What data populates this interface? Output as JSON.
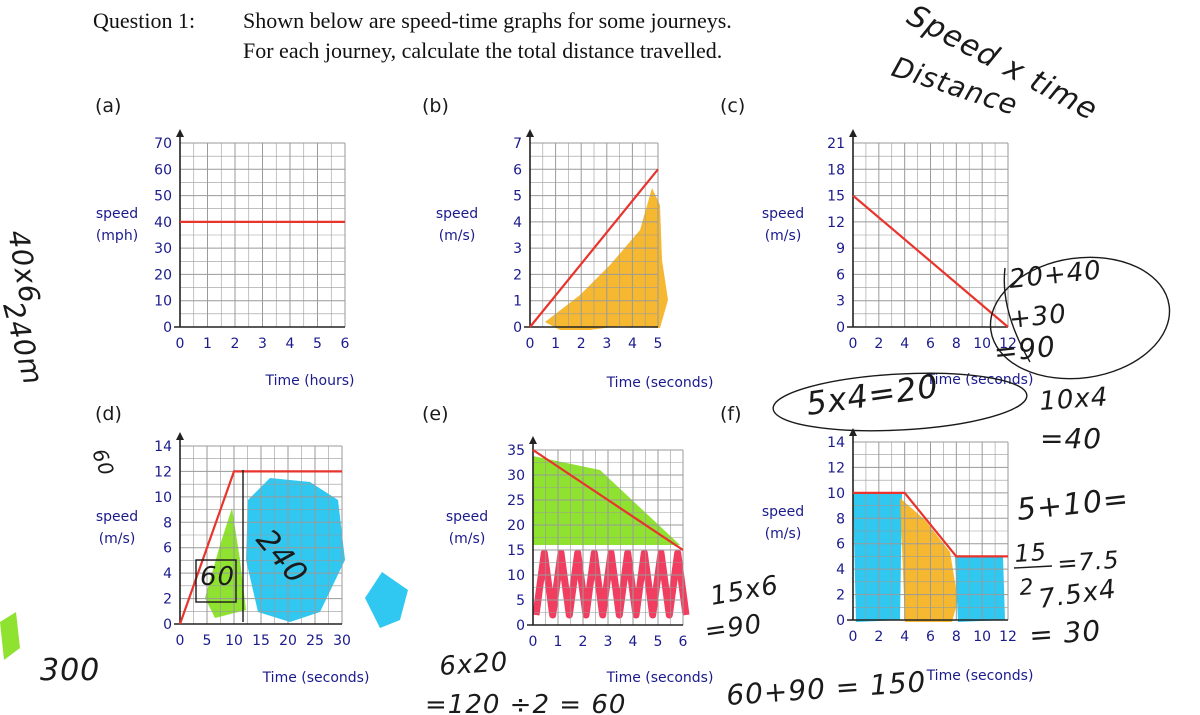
{
  "question": {
    "number": "Question 1:",
    "line1": "Shown below are speed-time graphs for some journeys.",
    "line2": "For each journey, calculate the total distance travelled."
  },
  "colors": {
    "grid": "#9a9a9a",
    "axis": "#222222",
    "line": "#e8342c",
    "label": "#1a1a8c",
    "ink": "#1a1a1a",
    "orange": "#f5b21e",
    "green": "#86e01e",
    "cyan": "#1ec3f0",
    "pink": "#f0284e"
  },
  "chart_data": [
    {
      "id": "a",
      "panel_label": "(a)",
      "type": "line",
      "ylabel": [
        "speed",
        "(mph)"
      ],
      "xlabel": "Time (hours)",
      "x_ticks": [
        "0",
        "1",
        "2",
        "3",
        "4",
        "5",
        "6"
      ],
      "y_ticks": [
        "0",
        "10",
        "20",
        "30",
        "40",
        "50",
        "60",
        "70"
      ],
      "xlim": [
        0,
        6
      ],
      "ylim": [
        0,
        70
      ],
      "grid": true,
      "series": [
        {
          "x": [
            0,
            6
          ],
          "y": [
            40,
            40
          ]
        }
      ]
    },
    {
      "id": "b",
      "panel_label": "(b)",
      "type": "line",
      "ylabel": [
        "speed",
        "(m/s)"
      ],
      "xlabel": "Time (seconds)",
      "x_ticks": [
        "0",
        "1",
        "2",
        "3",
        "4",
        "5"
      ],
      "y_ticks": [
        "0",
        "1",
        "2",
        "3",
        "4",
        "5",
        "6",
        "7"
      ],
      "xlim": [
        0,
        5
      ],
      "ylim": [
        0,
        7
      ],
      "grid": true,
      "series": [
        {
          "x": [
            0,
            5
          ],
          "y": [
            0,
            6
          ]
        }
      ]
    },
    {
      "id": "c",
      "panel_label": "(c)",
      "type": "line",
      "ylabel": [
        "speed",
        "(m/s)"
      ],
      "xlabel": "Time (seconds)",
      "x_ticks": [
        "0",
        "2",
        "4",
        "6",
        "8",
        "10",
        "12"
      ],
      "y_ticks": [
        "0",
        "3",
        "6",
        "9",
        "12",
        "15",
        "18",
        "21"
      ],
      "xlim": [
        0,
        12
      ],
      "ylim": [
        0,
        21
      ],
      "grid": true,
      "series": [
        {
          "x": [
            0,
            12
          ],
          "y": [
            15,
            0
          ]
        }
      ]
    },
    {
      "id": "d",
      "panel_label": "(d)",
      "type": "line",
      "ylabel": [
        "speed",
        "(m/s)"
      ],
      "xlabel": "Time (seconds)",
      "x_ticks": [
        "0",
        "5",
        "10",
        "15",
        "20",
        "25",
        "30"
      ],
      "y_ticks": [
        "0",
        "2",
        "4",
        "6",
        "8",
        "10",
        "12",
        "14"
      ],
      "xlim": [
        0,
        30
      ],
      "ylim": [
        0,
        14
      ],
      "grid": true,
      "series": [
        {
          "x": [
            0,
            10,
            30
          ],
          "y": [
            0,
            12,
            12
          ]
        }
      ]
    },
    {
      "id": "e",
      "panel_label": "(e)",
      "type": "line",
      "ylabel": [
        "speed",
        "(m/s)"
      ],
      "xlabel": "Time (seconds)",
      "x_ticks": [
        "0",
        "1",
        "2",
        "3",
        "4",
        "5",
        "6"
      ],
      "y_ticks": [
        "0",
        "5",
        "10",
        "15",
        "20",
        "25",
        "30",
        "35"
      ],
      "xlim": [
        0,
        6
      ],
      "ylim": [
        0,
        35
      ],
      "grid": true,
      "series": [
        {
          "x": [
            0,
            6
          ],
          "y": [
            35,
            15
          ]
        }
      ]
    },
    {
      "id": "f",
      "panel_label": "(f)",
      "type": "line",
      "ylabel": [
        "speed",
        "(m/s)"
      ],
      "xlabel": "Time (seconds)",
      "x_ticks": [
        "0",
        "2",
        "4",
        "6",
        "8",
        "10",
        "12"
      ],
      "y_ticks": [
        "0",
        "2",
        "4",
        "6",
        "8",
        "10",
        "12",
        "14"
      ],
      "xlim": [
        0,
        12
      ],
      "ylim": [
        0,
        14
      ],
      "grid": true,
      "series": [
        {
          "x": [
            0,
            4,
            8,
            12
          ],
          "y": [
            10,
            10,
            5,
            5
          ]
        }
      ]
    }
  ],
  "annotations": {
    "top_right_1": "Speed x time",
    "top_right_2": "Distance",
    "left_a_1": "40x6",
    "left_a_2": "240m",
    "left_mid": "60",
    "left_bottom": "300",
    "c_work_1": "20+40",
    "c_work_2": "+30",
    "c_work_3": "=90",
    "c_circle": "5x4=20",
    "c_right_1": "10x4",
    "c_right_2": "=40",
    "d_big": "240",
    "d_small": "60",
    "e_work_1": "15x6",
    "e_work_2": "=90",
    "e_bottom_1": "6x20",
    "e_bottom_2": "=120 ÷2 = 60",
    "e_bottom_3": "60+90 = 150",
    "f_work_1": "5+10=",
    "f_work_2": "15",
    "f_work_2b": "=7.5",
    "f_work_2c": "2",
    "f_work_3": "7.5x4",
    "f_work_4": "= 30"
  }
}
